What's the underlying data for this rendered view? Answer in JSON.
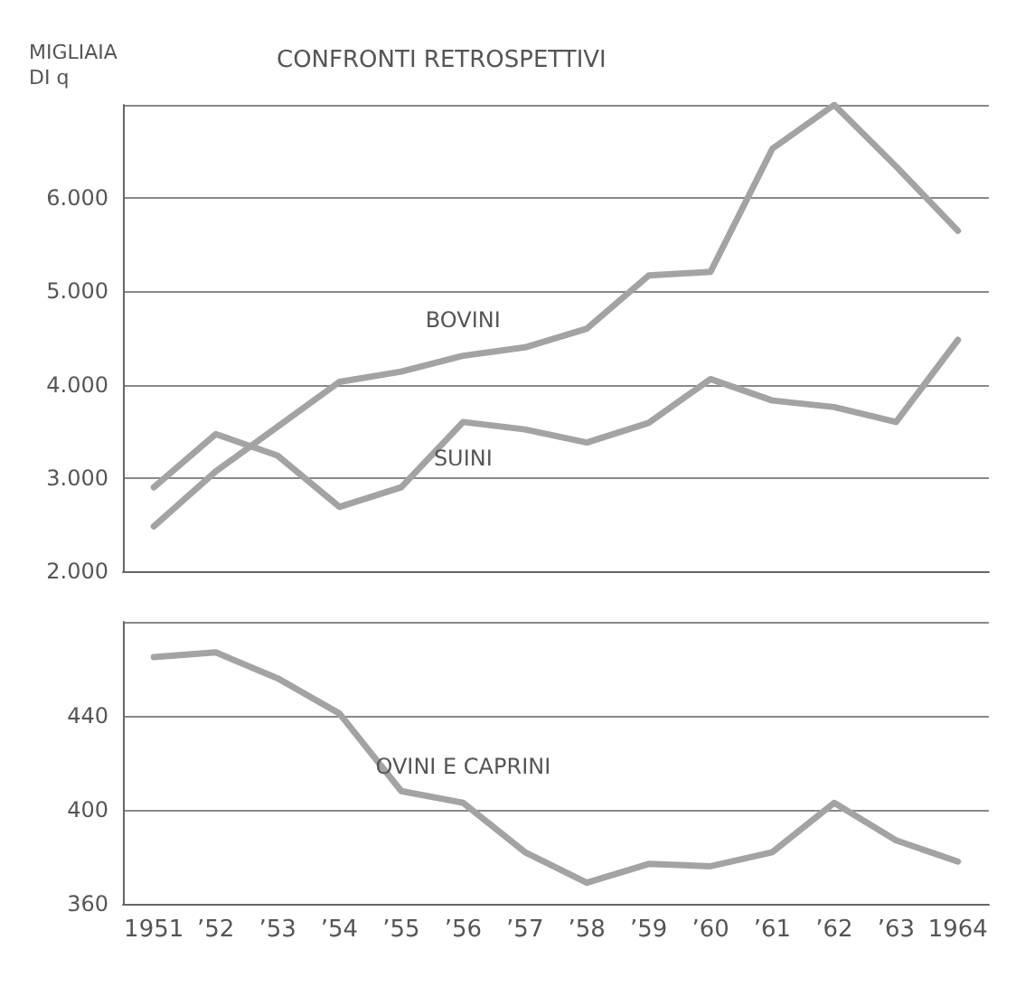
{
  "chart_data": [
    {
      "type": "line",
      "title": "CONFRONTI RETROSPETTIVI",
      "ylabel": "MIGLIAIA\nDI q",
      "categories": [
        null,
        null,
        null,
        null,
        null,
        null,
        null,
        null,
        null,
        null,
        null,
        null,
        null,
        null
      ],
      "series": [
        {
          "name": "BOVINI",
          "color": "#a3a3a3",
          "values": [
            2480,
            3070,
            3550,
            4030,
            4140,
            4310,
            4400,
            4600,
            5170,
            5210,
            6530,
            7000,
            6340,
            5650
          ]
        },
        {
          "name": "SUINI",
          "color": "#a3a3a3",
          "values": [
            2900,
            3470,
            3240,
            2690,
            2900,
            3600,
            3520,
            3380,
            3590,
            4060,
            3830,
            3760,
            3600,
            4480
          ]
        }
      ],
      "ylim": [
        2000,
        7000
      ],
      "yticks": [
        {
          "value": 2000,
          "label": "2.000"
        },
        {
          "value": 3000,
          "label": "3.000"
        },
        {
          "value": 4000,
          "label": "4.000"
        },
        {
          "value": 5000,
          "label": "5.000"
        },
        {
          "value": 6000,
          "label": "6.000"
        },
        {
          "value": 7000,
          "label": null
        }
      ],
      "grid": "y",
      "tick_labels": "y",
      "marker": "none",
      "line_style": "solid"
    },
    {
      "type": "line",
      "categories": [
        "1951",
        "’52",
        "’53",
        "’54",
        "’55",
        "’56",
        "’57",
        "’58",
        "’59",
        "’60",
        "’61",
        "’62",
        "’63",
        "1964"
      ],
      "series": [
        {
          "name": "OVINI E CAPRINI",
          "color": "#a3a3a3",
          "values": [
            465,
            467,
            456,
            441,
            408,
            403,
            382,
            369,
            377,
            376,
            382,
            403,
            387,
            378
          ]
        }
      ],
      "ylim": [
        360,
        480
      ],
      "yticks": [
        360,
        400,
        440,
        {
          "value": 480,
          "label": null
        }
      ],
      "grid": "y",
      "marker": "none",
      "line_style": "solid"
    }
  ]
}
